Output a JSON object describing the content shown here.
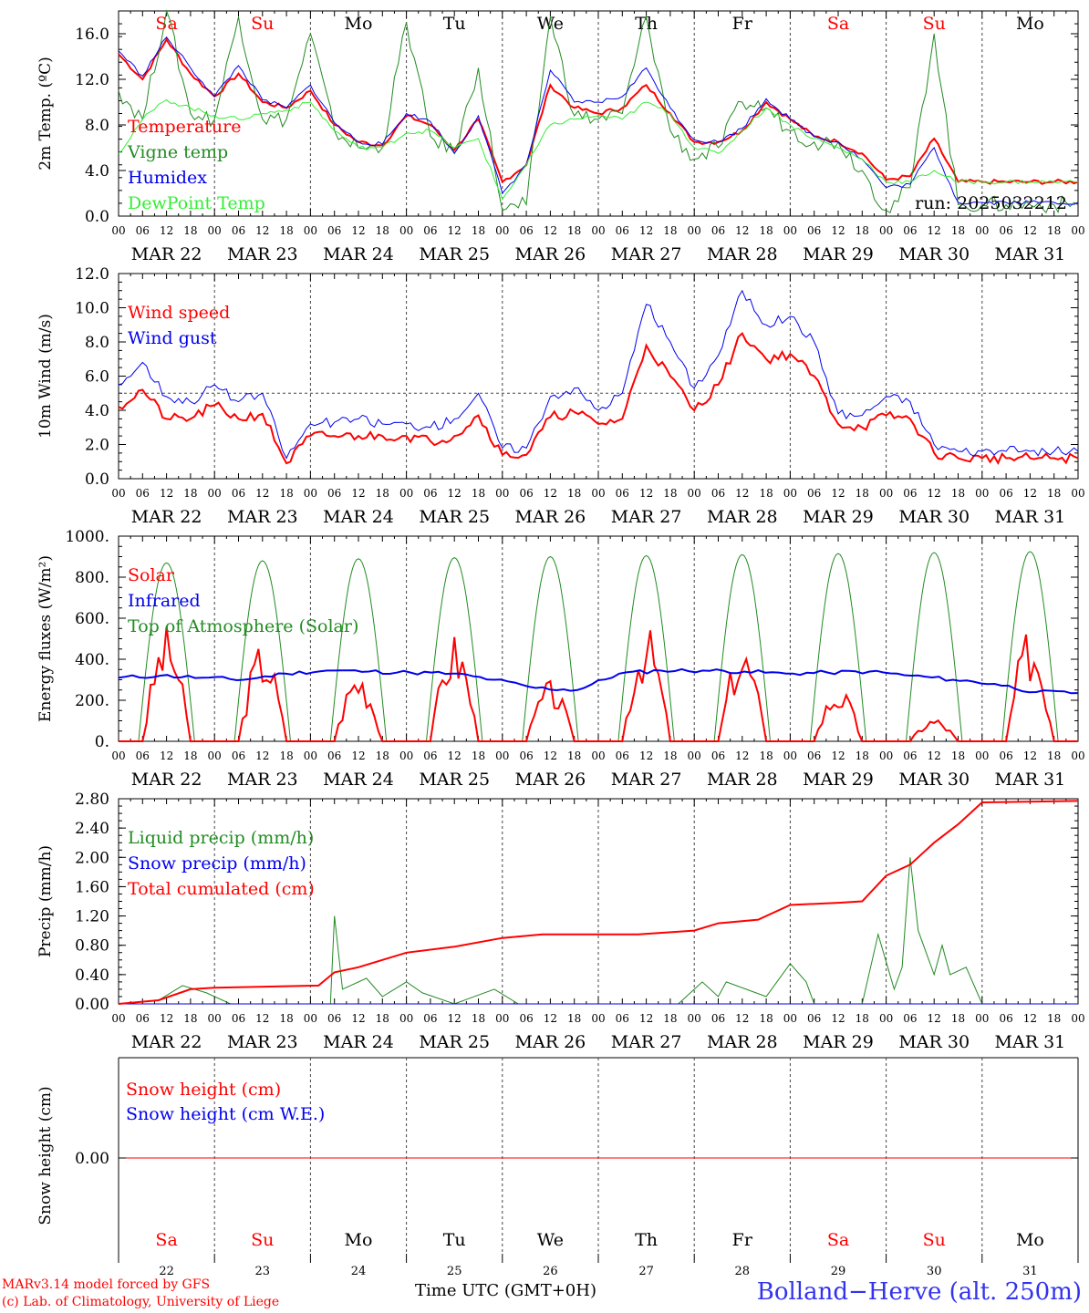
{
  "footer": {
    "model": "MARv3.14 model forced by GFS",
    "copyright": "(c) Lab. of Climatology, University of Liege",
    "xlabel": "Time UTC (GMT+0H)",
    "station": "Bolland−Herve (alt. 250m)"
  },
  "colors": {
    "red": "#ff0000",
    "blue": "#0000ee",
    "green": "#228b22",
    "lightgreen": "#33ee33",
    "grid": "#666666"
  },
  "chart_data": [
    {
      "type": "line",
      "ylabel": "2m Temp. (ºC)",
      "ylim": [
        0,
        18
      ],
      "yticks": [
        "0.0",
        "4.0",
        "8.0",
        "12.0",
        "16.0"
      ],
      "annotation": "run: 2025032212",
      "days": [
        "MAR 22",
        "MAR 23",
        "MAR 24",
        "MAR 25",
        "MAR 26",
        "MAR 27",
        "MAR 28",
        "MAR 29",
        "MAR 30",
        "MAR 31"
      ],
      "weekdays": [
        "Sa",
        "Su",
        "Mo",
        "Tu",
        "We",
        "Th",
        "Fr",
        "Sa",
        "Su",
        "Mo"
      ],
      "x_hours": [
        0,
        6,
        12,
        18,
        24,
        30,
        36,
        42,
        48,
        54,
        60,
        66,
        72,
        78,
        84,
        90,
        96,
        102,
        108,
        114,
        120,
        126,
        132,
        138,
        144,
        150,
        156,
        162,
        168,
        174,
        180,
        186,
        192,
        198,
        204,
        210,
        216,
        222,
        228,
        234,
        240
      ],
      "series": [
        {
          "name": "Temperature",
          "color": "#ff0000",
          "width": 2,
          "values": [
            14.2,
            12.0,
            15.5,
            12.5,
            10.5,
            12.5,
            10.0,
            9.5,
            11.0,
            8.0,
            6.5,
            6.2,
            8.8,
            8.0,
            5.8,
            8.5,
            3.0,
            4.5,
            11.5,
            9.5,
            9.0,
            9.5,
            11.5,
            9.0,
            6.5,
            6.5,
            7.5,
            10.0,
            8.5,
            7.0,
            6.5,
            5.5,
            3.2,
            3.5,
            6.8,
            3.0,
            3.0,
            3.0,
            3.0,
            3.0,
            3.0
          ]
        },
        {
          "name": "Vigne temp",
          "color": "#228b22",
          "width": 1,
          "values": [
            11.0,
            8.5,
            18.0,
            9.0,
            8.5,
            17.5,
            8.5,
            8.5,
            16.0,
            7.5,
            6.0,
            6.0,
            17.0,
            7.0,
            5.5,
            13.0,
            0.5,
            1.0,
            17.5,
            8.8,
            8.5,
            9.0,
            17.5,
            7.5,
            5.0,
            6.0,
            10.0,
            9.5,
            7.5,
            6.5,
            6.5,
            4.0,
            0.5,
            2.5,
            16.0,
            1.0,
            1.0,
            1.0,
            1.0,
            1.0,
            1.0
          ]
        },
        {
          "name": "Humidex",
          "color": "#0000ee",
          "width": 1,
          "values": [
            14.5,
            12.3,
            15.7,
            13.0,
            10.5,
            13.2,
            10.2,
            9.5,
            11.5,
            8.2,
            6.5,
            6.3,
            9.0,
            8.3,
            5.5,
            8.8,
            2.0,
            4.5,
            12.8,
            10.0,
            10.0,
            10.5,
            13.0,
            9.5,
            6.7,
            6.5,
            7.7,
            10.3,
            8.5,
            7.0,
            6.5,
            5.0,
            2.5,
            2.8,
            6.0,
            1.2,
            1.2,
            1.2,
            1.2,
            1.2,
            1.2
          ]
        },
        {
          "name": "DewPoint Temp",
          "color": "#33ee33",
          "width": 1,
          "values": [
            5.5,
            8.5,
            10.2,
            9.5,
            8.8,
            8.5,
            9.0,
            9.3,
            10.0,
            7.5,
            6.0,
            6.0,
            7.3,
            7.5,
            6.0,
            6.8,
            1.5,
            4.5,
            8.0,
            8.5,
            8.8,
            8.5,
            10.0,
            9.0,
            6.0,
            5.5,
            7.5,
            9.5,
            8.0,
            6.8,
            6.0,
            5.0,
            3.0,
            3.0,
            4.0,
            3.0,
            3.0,
            3.0,
            3.0,
            3.0,
            3.0
          ]
        }
      ]
    },
    {
      "type": "line",
      "ylabel": "10m Wind (m/s)",
      "ylim": [
        0,
        12
      ],
      "yticks": [
        "0.0",
        "2.0",
        "4.0",
        "6.0",
        "8.0",
        "10.0",
        "12.0"
      ],
      "reference_line": 5.0,
      "days": [
        "MAR 22",
        "MAR 23",
        "MAR 24",
        "MAR 25",
        "MAR 26",
        "MAR 27",
        "MAR 28",
        "MAR 29",
        "MAR 30",
        "MAR 31"
      ],
      "x_hours": [
        0,
        6,
        12,
        18,
        24,
        30,
        36,
        42,
        48,
        54,
        60,
        66,
        72,
        78,
        84,
        90,
        96,
        102,
        108,
        114,
        120,
        126,
        132,
        138,
        144,
        150,
        156,
        162,
        168,
        174,
        180,
        186,
        192,
        198,
        204,
        210,
        216,
        222,
        228,
        234,
        240
      ],
      "series": [
        {
          "name": "Wind speed",
          "color": "#ff0000",
          "width": 2,
          "values": [
            4.2,
            5.2,
            3.5,
            3.5,
            4.3,
            3.5,
            3.8,
            0.9,
            2.5,
            2.5,
            2.5,
            2.5,
            2.5,
            2.2,
            2.5,
            3.7,
            1.4,
            1.4,
            3.6,
            3.9,
            3.2,
            3.5,
            7.8,
            6.0,
            4.0,
            5.5,
            8.5,
            7.0,
            7.3,
            6.0,
            3.2,
            3.0,
            3.7,
            3.5,
            1.5,
            1.2,
            1.2,
            1.2,
            1.2,
            1.2,
            1.2
          ]
        },
        {
          "name": "Wind gust",
          "color": "#0000ee",
          "width": 1,
          "values": [
            5.5,
            6.8,
            4.8,
            4.5,
            5.5,
            4.5,
            5.0,
            1.2,
            3.2,
            3.3,
            3.5,
            3.2,
            3.2,
            3.0,
            3.5,
            5.0,
            1.8,
            1.8,
            4.8,
            5.3,
            4.0,
            5.0,
            10.2,
            8.0,
            5.3,
            7.2,
            11.0,
            9.0,
            9.5,
            8.0,
            3.8,
            3.7,
            4.8,
            4.5,
            2.0,
            1.6,
            1.6,
            1.6,
            1.6,
            1.6,
            1.6
          ]
        }
      ]
    },
    {
      "type": "line",
      "ylabel": "Energy fluxes (W/m²)",
      "ylim": [
        0,
        1000
      ],
      "yticks": [
        "0.",
        "200.",
        "400.",
        "600.",
        "800.",
        "1000."
      ],
      "days": [
        "MAR 22",
        "MAR 23",
        "MAR 24",
        "MAR 25",
        "MAR 26",
        "MAR 27",
        "MAR 28",
        "MAR 29",
        "MAR 30",
        "MAR 31"
      ],
      "series": [
        {
          "name": "Solar",
          "color": "#ff0000",
          "width": 2,
          "peaks": [
            570,
            500,
            370,
            540,
            300,
            570,
            490,
            280,
            120,
            560
          ]
        },
        {
          "name": "Infrared",
          "color": "#0000ee",
          "width": 2,
          "values": [
            310,
            320,
            310,
            300,
            330,
            345,
            340,
            335,
            330,
            300,
            260,
            250,
            330,
            345,
            345,
            340,
            330,
            335,
            340,
            320,
            300,
            280,
            240,
            235
          ]
        },
        {
          "name": "Top of Atmosphere (Solar)",
          "color": "#228b22",
          "width": 1,
          "peaks": [
            870,
            880,
            890,
            895,
            900,
            905,
            910,
            915,
            920,
            925
          ]
        }
      ]
    },
    {
      "type": "line",
      "ylabel": "Precip (mm/h)",
      "ylim": [
        0,
        2.8
      ],
      "yticks": [
        "0.00",
        "0.40",
        "0.80",
        "1.20",
        "1.60",
        "2.00",
        "2.40",
        "2.80"
      ],
      "days": [
        "MAR 22",
        "MAR 23",
        "MAR 24",
        "MAR 25",
        "MAR 26",
        "MAR 27",
        "MAR 28",
        "MAR 29",
        "MAR 30",
        "MAR 31"
      ],
      "series": [
        {
          "name": "Liquid precip (mm/h)",
          "color": "#228b22",
          "width": 1,
          "points": [
            [
              0,
              0
            ],
            [
              10,
              0.05
            ],
            [
              16,
              0.25
            ],
            [
              22,
              0.15
            ],
            [
              28,
              0
            ],
            [
              53,
              0
            ],
            [
              54,
              1.2
            ],
            [
              56,
              0.2
            ],
            [
              62,
              0.35
            ],
            [
              66,
              0.1
            ],
            [
              72,
              0.3
            ],
            [
              76,
              0.15
            ],
            [
              84,
              0
            ],
            [
              94,
              0.2
            ],
            [
              100,
              0
            ],
            [
              140,
              0
            ],
            [
              146,
              0.3
            ],
            [
              150,
              0.1
            ],
            [
              152,
              0.3
            ],
            [
              162,
              0.1
            ],
            [
              168,
              0.55
            ],
            [
              172,
              0.3
            ],
            [
              174,
              0
            ],
            [
              186,
              0
            ],
            [
              190,
              0.95
            ],
            [
              194,
              0.2
            ],
            [
              196,
              0.5
            ],
            [
              198,
              2.0
            ],
            [
              200,
              1.0
            ],
            [
              204,
              0.4
            ],
            [
              206,
              0.8
            ],
            [
              208,
              0.4
            ],
            [
              212,
              0.5
            ],
            [
              216,
              0
            ],
            [
              240,
              0
            ]
          ]
        },
        {
          "name": "Snow precip (mm/h)",
          "color": "#0000ee",
          "width": 1,
          "points": [
            [
              0,
              0
            ],
            [
              240,
              0
            ]
          ]
        },
        {
          "name": "Total cumulated (cm)",
          "color": "#ff0000",
          "width": 2,
          "points": [
            [
              0,
              0
            ],
            [
              10,
              0.05
            ],
            [
              18,
              0.2
            ],
            [
              24,
              0.22
            ],
            [
              50,
              0.25
            ],
            [
              54,
              0.43
            ],
            [
              60,
              0.5
            ],
            [
              66,
              0.6
            ],
            [
              72,
              0.7
            ],
            [
              84,
              0.78
            ],
            [
              96,
              0.9
            ],
            [
              106,
              0.95
            ],
            [
              130,
              0.95
            ],
            [
              144,
              1.0
            ],
            [
              150,
              1.1
            ],
            [
              160,
              1.15
            ],
            [
              168,
              1.35
            ],
            [
              180,
              1.38
            ],
            [
              186,
              1.4
            ],
            [
              192,
              1.75
            ],
            [
              198,
              1.9
            ],
            [
              204,
              2.2
            ],
            [
              210,
              2.45
            ],
            [
              216,
              2.75
            ],
            [
              240,
              2.77
            ]
          ]
        }
      ]
    },
    {
      "type": "line",
      "ylabel": "Snow height (cm)",
      "yticks": [
        "0.00"
      ],
      "weekdays": [
        "Sa",
        "Su",
        "Mo",
        "Tu",
        "We",
        "Th",
        "Fr",
        "Sa",
        "Su",
        "Mo"
      ],
      "daynums": [
        "22",
        "23",
        "24",
        "25",
        "26",
        "27",
        "28",
        "29",
        "30",
        "31"
      ],
      "series": [
        {
          "name": "Snow height (cm)",
          "color": "#ff0000",
          "width": 1,
          "values": [
            0,
            0
          ]
        },
        {
          "name": "Snow height (cm W.E.)",
          "color": "#0000ee",
          "width": 1,
          "values": [
            0,
            0
          ]
        }
      ]
    }
  ]
}
